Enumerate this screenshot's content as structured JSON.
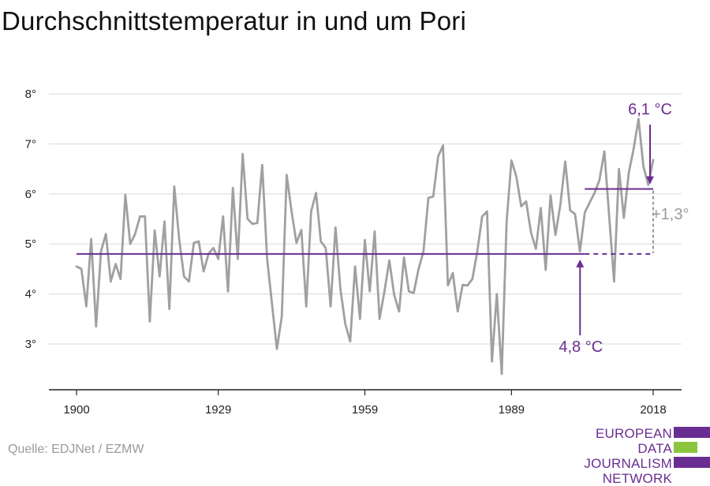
{
  "title": "Durchschnittstemperatur in und um Pori",
  "source": "Quelle: EDJNet / EZMW",
  "logo": {
    "line1": "EUROPEAN",
    "line2": "DATA JOURNALISM",
    "line3": "NETWORK"
  },
  "colors": {
    "line": "#a0a0a0",
    "average": "#6a2d91",
    "grid": "#d9d9d9",
    "axis": "#222222",
    "diff": "#9a9a9a"
  },
  "chart_data": {
    "type": "line",
    "title": "",
    "xlabel": "",
    "ylabel": "",
    "xlim": [
      1900,
      2018
    ],
    "ylim": [
      2,
      8
    ],
    "x_ticks": [
      1900,
      1929,
      1959,
      1989,
      2018
    ],
    "x_tick_labels": [
      "1900",
      "1929",
      "1959",
      "1989",
      "2018"
    ],
    "y_ticks": [
      3,
      4,
      5,
      6,
      7,
      8
    ],
    "y_tick_labels": [
      "3°",
      "4°",
      "5°",
      "6°",
      "7°",
      "8°"
    ],
    "grid": true,
    "series": [
      {
        "x": [
          1900,
          1901,
          1902,
          1903,
          1904,
          1905,
          1906,
          1907,
          1908,
          1909,
          1910,
          1911,
          1912,
          1913,
          1914,
          1915,
          1916,
          1917,
          1918,
          1919,
          1920,
          1921,
          1922,
          1923,
          1924,
          1925,
          1926,
          1927,
          1928,
          1929,
          1930,
          1931,
          1932,
          1933,
          1934,
          1935,
          1936,
          1937,
          1938,
          1939,
          1940,
          1941,
          1942,
          1943,
          1944,
          1945,
          1946,
          1947,
          1948,
          1949,
          1950,
          1951,
          1952,
          1953,
          1954,
          1955,
          1956,
          1957,
          1958,
          1959,
          1960,
          1961,
          1962,
          1963,
          1964,
          1965,
          1966,
          1967,
          1968,
          1969,
          1970,
          1971,
          1972,
          1973,
          1974,
          1975,
          1976,
          1977,
          1978,
          1979,
          1980,
          1981,
          1982,
          1983,
          1984,
          1985,
          1986,
          1987,
          1988,
          1989,
          1990,
          1991,
          1992,
          1993,
          1994,
          1995,
          1996,
          1997,
          1998,
          1999,
          2000,
          2001,
          2002,
          2003,
          2004,
          2005,
          2006,
          2007,
          2008,
          2009,
          2010,
          2011,
          2012,
          2013,
          2014,
          2015,
          2016,
          2017,
          2018
        ],
        "y": [
          4.55,
          4.5,
          3.75,
          5.1,
          3.35,
          4.85,
          5.2,
          4.25,
          4.6,
          4.3,
          5.98,
          5.0,
          5.2,
          5.55,
          5.55,
          3.45,
          5.27,
          4.35,
          5.45,
          3.7,
          6.15,
          5.1,
          4.35,
          4.25,
          5.02,
          5.05,
          4.45,
          4.8,
          4.92,
          4.7,
          5.55,
          4.05,
          6.12,
          4.7,
          6.8,
          5.5,
          5.4,
          5.42,
          6.58,
          4.7,
          3.8,
          2.9,
          3.55,
          6.38,
          5.65,
          5.02,
          5.28,
          3.75,
          5.65,
          6.02,
          5.05,
          4.92,
          3.75,
          5.33,
          4.1,
          3.4,
          3.05,
          4.55,
          3.5,
          5.08,
          4.05,
          5.25,
          3.5,
          4.05,
          4.67,
          3.98,
          3.65,
          4.73,
          4.05,
          4.02,
          4.5,
          4.85,
          5.92,
          5.95,
          6.75,
          6.97,
          4.17,
          4.42,
          3.65,
          4.18,
          4.17,
          4.3,
          4.85,
          5.55,
          5.65,
          2.65,
          4.0,
          2.4,
          5.45,
          6.67,
          6.35,
          5.75,
          5.85,
          5.23,
          4.9,
          5.72,
          4.48,
          5.97,
          5.18,
          5.78,
          6.65,
          5.67,
          5.6,
          4.85,
          5.63,
          5.83,
          6.02,
          6.28,
          6.85,
          5.55,
          4.25,
          6.5,
          5.52,
          6.42,
          6.9,
          7.5,
          6.55,
          6.18,
          6.68
        ]
      }
    ],
    "annotations": {
      "old_average": {
        "value": 4.8,
        "label": "4,8 °C",
        "x_start": 1900,
        "x_end": 2004,
        "x_end_dashed": 2018
      },
      "new_average": {
        "value": 6.1,
        "label": "6,1 °C",
        "x_start": 2004,
        "x_end": 2018
      },
      "difference": {
        "label": "+1,3°"
      }
    }
  }
}
